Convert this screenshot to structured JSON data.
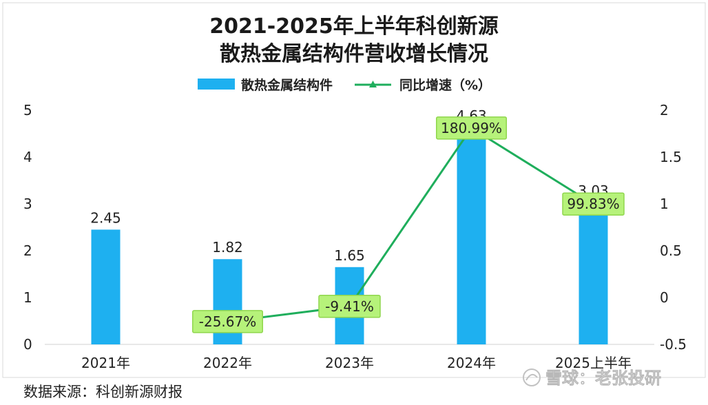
{
  "title_line1": "2021-2025年上半年科创新源",
  "title_line2": "散热金属结构件营收增长情况",
  "legend": {
    "bar_label": "散热金属结构件",
    "line_label": "同比增速（%）"
  },
  "colors": {
    "bar": "#1eb0f0",
    "line": "#1fae5c",
    "label_bg": "#b6f27a",
    "label_border": "#8fd64c"
  },
  "source": "数据来源：科创新源财报",
  "watermark": "雪球：老张投研",
  "watermark_icon": "snowball-logo-icon",
  "chart_data": {
    "type": "bar",
    "categories": [
      "2021年",
      "2022年",
      "2023年",
      "2024年",
      "2025上半年"
    ],
    "series": [
      {
        "name": "散热金属结构件",
        "type": "bar",
        "axis": "left",
        "values": [
          2.45,
          1.82,
          1.65,
          4.63,
          3.03
        ],
        "labels": [
          "2.45",
          "1.82",
          "1.65",
          "4.63",
          "3.03"
        ]
      },
      {
        "name": "同比增速（%）",
        "type": "line",
        "axis": "right",
        "values": [
          null,
          -0.2567,
          -0.0941,
          1.8099,
          0.9983
        ],
        "labels": [
          "",
          "-25.67%",
          "-9.41%",
          "180.99%",
          "99.83%"
        ]
      }
    ],
    "y_left": {
      "min": 0,
      "max": 5,
      "ticks": [
        "0",
        "1",
        "2",
        "3",
        "4",
        "5"
      ]
    },
    "y_right": {
      "min": -0.5,
      "max": 2,
      "ticks": [
        "-0.5",
        "0",
        "0.5",
        "1",
        "1.5",
        "2"
      ]
    },
    "grid": false,
    "legend_position": "top"
  }
}
